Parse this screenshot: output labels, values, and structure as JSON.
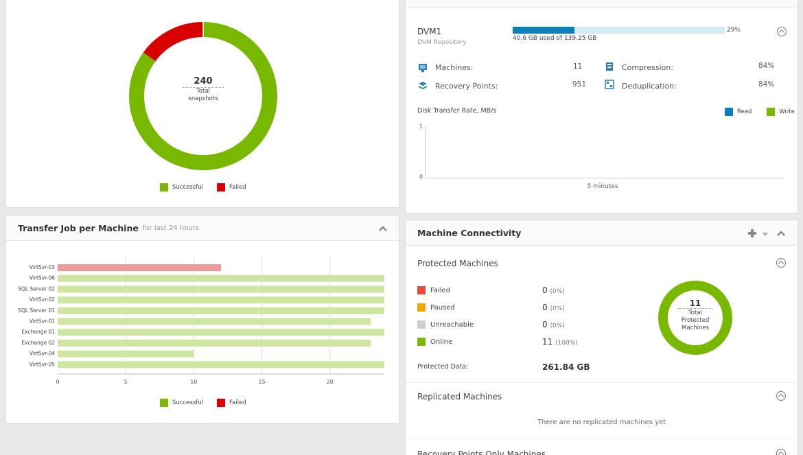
{
  "snapshots": {
    "total": "240",
    "total_label_1": "Total",
    "total_label_2": "snapshots",
    "successful_fraction": 0.85,
    "failed_fraction": 0.15,
    "legend": {
      "successful": "Successful",
      "failed": "Failed"
    },
    "colors": {
      "successful": "#78b900",
      "failed": "#d80000"
    }
  },
  "repository": {
    "name": "DVM1",
    "subtitle": "DVM Repository",
    "usage_percent_label": "29%",
    "usage_fraction": 0.29,
    "usage_text": "40.6 GB used of 139.25 GB",
    "machines_label": "Machines:",
    "machines_value": "11",
    "recovery_points_label": "Recovery Points:",
    "recovery_points_value": "951",
    "compression_label": "Compression:",
    "compression_value": "84%",
    "deduplication_label": "Deduplication:",
    "deduplication_value": "84%",
    "disk_rate_title": "Disk Transfer Rate, MB/s",
    "legend_read": "Read",
    "legend_write": "Write",
    "y_max": "1",
    "y_min": "0",
    "x_label": "5 minutes",
    "colors": {
      "read": "#0a7fbf",
      "write": "#78b900"
    }
  },
  "transfer_jobs": {
    "title": "Transfer Job per Machine",
    "subtitle": "for last 24 hours",
    "legend": {
      "successful": "Successful",
      "failed": "Failed"
    }
  },
  "chart_data": {
    "type": "bar",
    "orientation": "horizontal",
    "categories": [
      "VirtSvr-03",
      "VirtSvr-06",
      "SQL Server 02",
      "VirtSvr-02",
      "SQL Server 01",
      "VirtSvr-01",
      "Exchange 01",
      "Exchange 02",
      "VirtSvr-04",
      "VirtSvr-05"
    ],
    "series": [
      {
        "name": "Failed",
        "values": [
          12,
          0,
          0,
          0,
          0,
          0,
          0,
          0,
          0,
          0
        ],
        "color": "#ee9a9a"
      },
      {
        "name": "Successful",
        "values": [
          0,
          24,
          24,
          24,
          24,
          23,
          24,
          23,
          10,
          24
        ],
        "color": "#cde6a0"
      }
    ],
    "x_ticks": [
      "0",
      "5",
      "10",
      "15",
      "20"
    ],
    "xlim": [
      0,
      24
    ],
    "grid": true,
    "legend_position": "bottom"
  },
  "connectivity": {
    "title": "Machine Connectivity",
    "protected_title": "Protected Machines",
    "rows": [
      {
        "label": "Failed",
        "value": "0",
        "pct": "(0%)",
        "color": "#e74c3c"
      },
      {
        "label": "Paused",
        "value": "0",
        "pct": "(0%)",
        "color": "#f0a800"
      },
      {
        "label": "Unreachable",
        "value": "0",
        "pct": "(0%)",
        "color": "#cccccc"
      },
      {
        "label": "Online",
        "value": "11",
        "pct": "(100%)",
        "color": "#78b900"
      }
    ],
    "protected_data_label": "Protected Data:",
    "protected_data_value": "261.84 GB",
    "donut_total": "11",
    "donut_label_1": "Total",
    "donut_label_2": "Protected",
    "donut_label_3": "Machines",
    "replicated_title": "Replicated Machines",
    "replicated_empty": "There are no replicated machines yet",
    "recovery_only_title": "Recovery Points Only Machines"
  }
}
